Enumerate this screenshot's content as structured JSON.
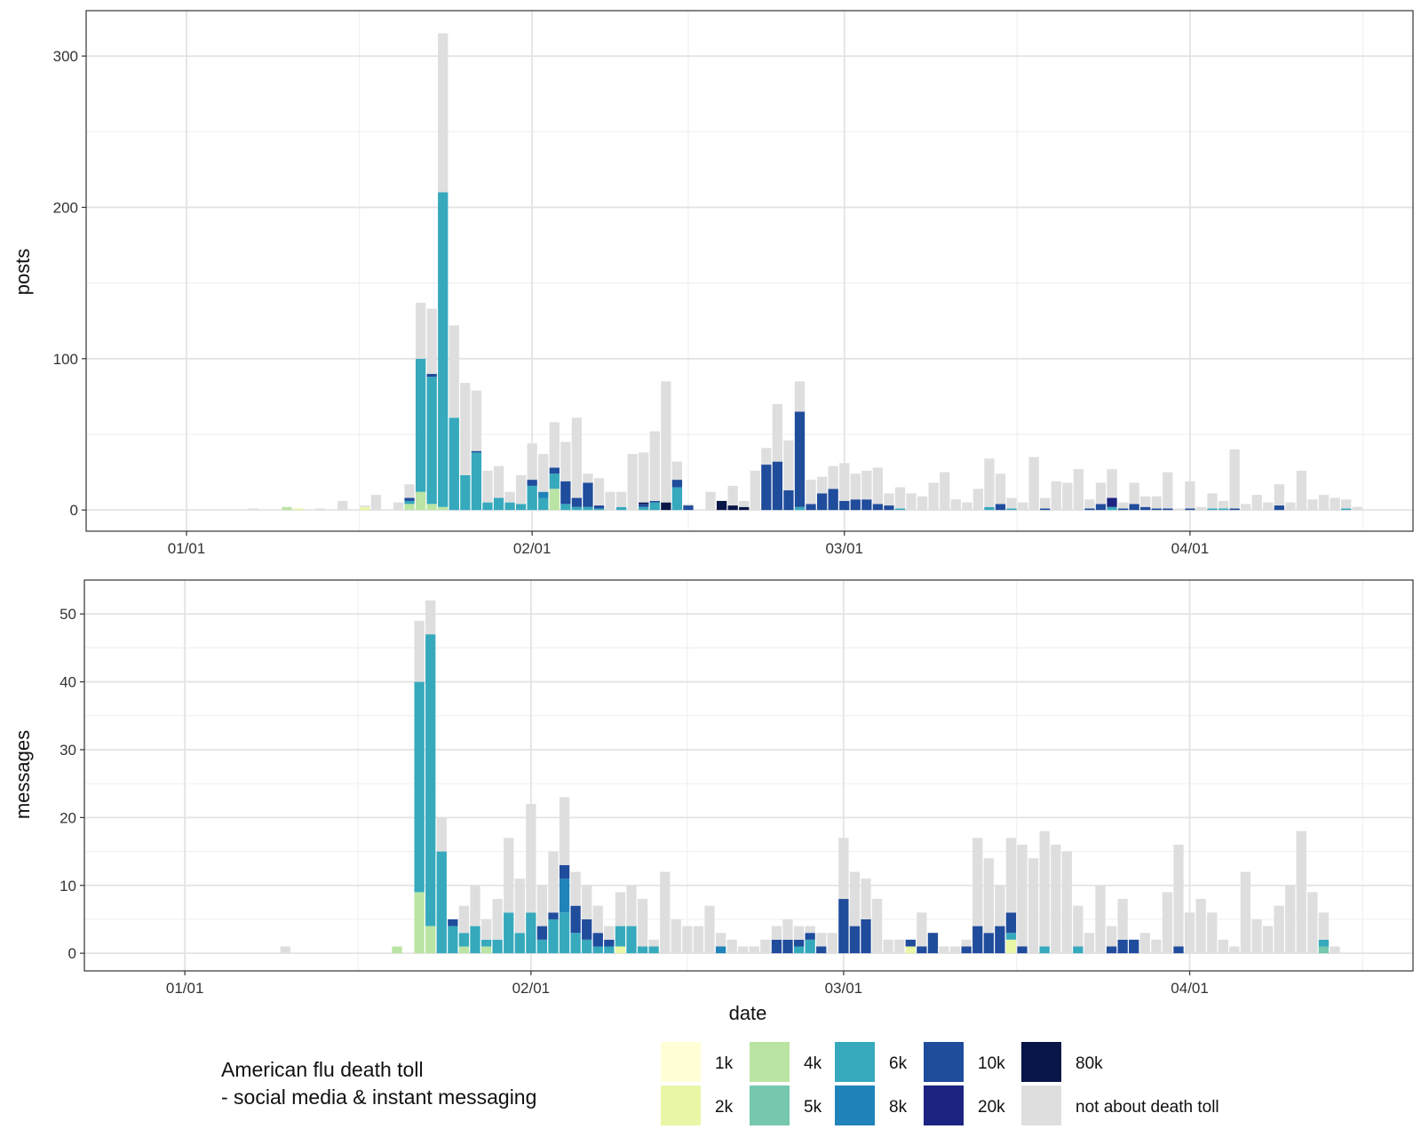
{
  "legend": {
    "title_line1": "American flu death toll",
    "title_line2": "- social media & instant messaging",
    "items": [
      {
        "key": "1k",
        "label": "1k",
        "color": "#fffed6"
      },
      {
        "key": "2k",
        "label": "2k",
        "color": "#e8f6a5"
      },
      {
        "key": "4k",
        "label": "4k",
        "color": "#bae4a3"
      },
      {
        "key": "5k",
        "label": "5k",
        "color": "#75c7ad"
      },
      {
        "key": "6k",
        "label": "6k",
        "color": "#36a9bd"
      },
      {
        "key": "8k",
        "label": "8k",
        "color": "#2083b9"
      },
      {
        "key": "10k",
        "label": "10k",
        "color": "#204c9c"
      },
      {
        "key": "20k",
        "label": "20k",
        "color": "#1c2380"
      },
      {
        "key": "80k",
        "label": "80k",
        "color": "#081647"
      },
      {
        "key": "none",
        "label": "not about death toll",
        "color": "#dedede"
      }
    ]
  },
  "chart_data": [
    {
      "type": "bar",
      "stacked": true,
      "ylabel": "posts",
      "xlabel": "",
      "ylim": [
        -14,
        330
      ],
      "yticks": [
        0,
        100,
        200,
        300
      ],
      "xticks": [
        "01/01",
        "02/01",
        "03/01",
        "04/01"
      ],
      "x_range_days": [
        -9,
        110
      ],
      "grid": true,
      "bars": [
        {
          "day": 6,
          "none": 1
        },
        {
          "day": 9,
          "4k": 2
        },
        {
          "day": 10,
          "2k": 1
        },
        {
          "day": 12,
          "none": 1
        },
        {
          "day": 14,
          "none": 6
        },
        {
          "day": 16,
          "2k": 2,
          "none": 1
        },
        {
          "day": 17,
          "none": 10
        },
        {
          "day": 19,
          "none": 5
        },
        {
          "day": 20,
          "4k": 4,
          "6k": 2,
          "10k": 2,
          "none": 9
        },
        {
          "day": 21,
          "4k": 12,
          "6k": 88,
          "none": 37
        },
        {
          "day": 22,
          "4k": 4,
          "6k": 84,
          "10k": 2,
          "none": 43
        },
        {
          "day": 23,
          "4k": 2,
          "6k": 208,
          "none": 105
        },
        {
          "day": 24,
          "6k": 61,
          "none": 61
        },
        {
          "day": 25,
          "6k": 23,
          "none": 61
        },
        {
          "day": 26,
          "6k": 38,
          "10k": 1,
          "none": 40
        },
        {
          "day": 27,
          "6k": 5,
          "none": 21
        },
        {
          "day": 28,
          "6k": 8,
          "none": 21
        },
        {
          "day": 29,
          "6k": 5,
          "none": 7
        },
        {
          "day": 30,
          "6k": 4,
          "none": 19
        },
        {
          "day": 31,
          "6k": 16,
          "10k": 4,
          "none": 24
        },
        {
          "day": 32,
          "6k": 8,
          "8k": 4,
          "none": 25
        },
        {
          "day": 33,
          "4k": 14,
          "6k": 10,
          "10k": 4,
          "none": 30
        },
        {
          "day": 34,
          "6k": 4,
          "10k": 15,
          "none": 26
        },
        {
          "day": 35,
          "6k": 2,
          "10k": 6,
          "none": 53
        },
        {
          "day": 36,
          "6k": 2,
          "10k": 16,
          "none": 6
        },
        {
          "day": 37,
          "6k": 1,
          "10k": 2,
          "none": 18
        },
        {
          "day": 38,
          "none": 12
        },
        {
          "day": 39,
          "6k": 2,
          "none": 10
        },
        {
          "day": 40,
          "none": 37
        },
        {
          "day": 41,
          "6k": 2,
          "10k": 2,
          "80k": 1,
          "none": 33
        },
        {
          "day": 42,
          "6k": 5,
          "10k": 1,
          "none": 46
        },
        {
          "day": 43,
          "80k": 5,
          "none": 80
        },
        {
          "day": 44,
          "6k": 15,
          "10k": 5,
          "none": 12
        },
        {
          "day": 45,
          "10k": 3,
          "none": 1
        },
        {
          "day": 47,
          "none": 12
        },
        {
          "day": 48,
          "80k": 6
        },
        {
          "day": 49,
          "80k": 3,
          "none": 13
        },
        {
          "day": 50,
          "80k": 2,
          "none": 4
        },
        {
          "day": 51,
          "none": 26
        },
        {
          "day": 52,
          "10k": 30,
          "none": 11
        },
        {
          "day": 53,
          "10k": 32,
          "none": 38
        },
        {
          "day": 54,
          "10k": 13,
          "none": 33
        },
        {
          "day": 55,
          "6k": 2,
          "10k": 63,
          "none": 20
        },
        {
          "day": 56,
          "10k": 4,
          "none": 16
        },
        {
          "day": 57,
          "10k": 11,
          "none": 11
        },
        {
          "day": 58,
          "10k": 14,
          "none": 15
        },
        {
          "day": 59,
          "10k": 6,
          "none": 25
        },
        {
          "day": 60,
          "10k": 7,
          "none": 17
        },
        {
          "day": 61,
          "10k": 7,
          "none": 19
        },
        {
          "day": 62,
          "10k": 4,
          "none": 24
        },
        {
          "day": 63,
          "10k": 3,
          "none": 8
        },
        {
          "day": 64,
          "6k": 1,
          "none": 14
        },
        {
          "day": 65,
          "none": 11
        },
        {
          "day": 66,
          "none": 9
        },
        {
          "day": 67,
          "none": 18
        },
        {
          "day": 68,
          "none": 25
        },
        {
          "day": 69,
          "none": 7
        },
        {
          "day": 70,
          "none": 5
        },
        {
          "day": 71,
          "none": 14
        },
        {
          "day": 72,
          "6k": 2,
          "none": 32
        },
        {
          "day": 73,
          "10k": 4,
          "none": 20
        },
        {
          "day": 74,
          "6k": 1,
          "none": 7
        },
        {
          "day": 75,
          "none": 5
        },
        {
          "day": 76,
          "none": 35
        },
        {
          "day": 77,
          "10k": 1,
          "none": 7
        },
        {
          "day": 78,
          "none": 19
        },
        {
          "day": 79,
          "none": 18
        },
        {
          "day": 80,
          "none": 27
        },
        {
          "day": 81,
          "10k": 1,
          "none": 6
        },
        {
          "day": 82,
          "10k": 4,
          "none": 14
        },
        {
          "day": 83,
          "6k": 2,
          "20k": 6,
          "none": 19
        },
        {
          "day": 84,
          "10k": 1,
          "none": 4
        },
        {
          "day": 85,
          "10k": 4,
          "none": 14
        },
        {
          "day": 86,
          "10k": 2,
          "none": 7
        },
        {
          "day": 87,
          "10k": 1,
          "none": 8
        },
        {
          "day": 88,
          "10k": 1,
          "none": 24
        },
        {
          "day": 89,
          "none": 1
        },
        {
          "day": 90,
          "10k": 1,
          "none": 18
        },
        {
          "day": 91,
          "none": 2
        },
        {
          "day": 92,
          "6k": 1,
          "none": 10
        },
        {
          "day": 93,
          "6k": 1,
          "none": 5
        },
        {
          "day": 94,
          "10k": 1,
          "none": 39
        },
        {
          "day": 95,
          "none": 4
        },
        {
          "day": 96,
          "none": 10
        },
        {
          "day": 97,
          "none": 5
        },
        {
          "day": 98,
          "10k": 3,
          "none": 14
        },
        {
          "day": 99,
          "none": 5
        },
        {
          "day": 100,
          "none": 26
        },
        {
          "day": 101,
          "none": 7
        },
        {
          "day": 102,
          "none": 10
        },
        {
          "day": 103,
          "none": 8
        },
        {
          "day": 104,
          "6k": 1,
          "none": 6
        },
        {
          "day": 105,
          "none": 2
        }
      ]
    },
    {
      "type": "bar",
      "stacked": true,
      "ylabel": "messages",
      "xlabel": "date",
      "ylim": [
        -2.6,
        55
      ],
      "yticks": [
        0,
        10,
        20,
        30,
        40,
        50
      ],
      "xticks": [
        "01/01",
        "02/01",
        "03/01",
        "04/01"
      ],
      "x_range_days": [
        -9,
        110
      ],
      "grid": true,
      "bars": [
        {
          "day": 9,
          "none": 1
        },
        {
          "day": 19,
          "4k": 1
        },
        {
          "day": 21,
          "4k": 9,
          "6k": 31,
          "none": 9
        },
        {
          "day": 22,
          "4k": 4,
          "6k": 43,
          "none": 5
        },
        {
          "day": 23,
          "6k": 15,
          "none": 5
        },
        {
          "day": 24,
          "6k": 4,
          "10k": 1
        },
        {
          "day": 25,
          "4k": 1,
          "6k": 2,
          "none": 4
        },
        {
          "day": 26,
          "6k": 4,
          "none": 6
        },
        {
          "day": 27,
          "4k": 1,
          "6k": 1,
          "none": 3
        },
        {
          "day": 28,
          "6k": 2,
          "none": 6
        },
        {
          "day": 29,
          "6k": 6,
          "none": 11
        },
        {
          "day": 30,
          "6k": 3,
          "none": 8
        },
        {
          "day": 31,
          "6k": 6,
          "none": 16
        },
        {
          "day": 32,
          "6k": 2,
          "10k": 2,
          "none": 6
        },
        {
          "day": 33,
          "6k": 5,
          "10k": 1,
          "none": 9
        },
        {
          "day": 34,
          "6k": 6,
          "8k": 5,
          "10k": 2,
          "none": 10
        },
        {
          "day": 35,
          "6k": 3,
          "10k": 4,
          "none": 5
        },
        {
          "day": 36,
          "6k": 2,
          "10k": 3,
          "none": 5
        },
        {
          "day": 37,
          "6k": 1,
          "10k": 2,
          "none": 4
        },
        {
          "day": 38,
          "6k": 1,
          "10k": 1,
          "none": 2
        },
        {
          "day": 39,
          "2k": 1,
          "6k": 3,
          "none": 5
        },
        {
          "day": 40,
          "6k": 4,
          "none": 6
        },
        {
          "day": 41,
          "6k": 1,
          "none": 7
        },
        {
          "day": 42,
          "6k": 1,
          "none": 1
        },
        {
          "day": 43,
          "none": 12
        },
        {
          "day": 44,
          "none": 5
        },
        {
          "day": 45,
          "none": 4
        },
        {
          "day": 46,
          "none": 4
        },
        {
          "day": 47,
          "none": 7
        },
        {
          "day": 48,
          "8k": 1,
          "none": 2
        },
        {
          "day": 49,
          "none": 2
        },
        {
          "day": 50,
          "none": 1
        },
        {
          "day": 51,
          "none": 1
        },
        {
          "day": 52,
          "none": 2
        },
        {
          "day": 53,
          "10k": 2,
          "none": 2
        },
        {
          "day": 54,
          "10k": 2,
          "none": 3
        },
        {
          "day": 55,
          "6k": 1,
          "10k": 1,
          "none": 2
        },
        {
          "day": 56,
          "6k": 2,
          "10k": 1,
          "none": 1
        },
        {
          "day": 57,
          "10k": 1,
          "none": 2
        },
        {
          "day": 58,
          "none": 3
        },
        {
          "day": 59,
          "10k": 8,
          "none": 9
        },
        {
          "day": 60,
          "10k": 4,
          "none": 8
        },
        {
          "day": 61,
          "10k": 5,
          "none": 6
        },
        {
          "day": 62,
          "none": 8
        },
        {
          "day": 63,
          "none": 2
        },
        {
          "day": 64,
          "none": 2
        },
        {
          "day": 65,
          "2k": 1,
          "10k": 1
        },
        {
          "day": 66,
          "10k": 1,
          "none": 5
        },
        {
          "day": 67,
          "10k": 3
        },
        {
          "day": 68,
          "none": 1
        },
        {
          "day": 69,
          "none": 1
        },
        {
          "day": 70,
          "10k": 1,
          "none": 1
        },
        {
          "day": 71,
          "10k": 4,
          "none": 13
        },
        {
          "day": 72,
          "10k": 3,
          "none": 11
        },
        {
          "day": 73,
          "10k": 4,
          "none": 6
        },
        {
          "day": 74,
          "2k": 2,
          "6k": 1,
          "10k": 3,
          "none": 11
        },
        {
          "day": 75,
          "10k": 1,
          "none": 15
        },
        {
          "day": 76,
          "none": 14
        },
        {
          "day": 77,
          "6k": 1,
          "none": 17
        },
        {
          "day": 78,
          "none": 16
        },
        {
          "day": 79,
          "none": 15
        },
        {
          "day": 80,
          "6k": 1,
          "none": 6
        },
        {
          "day": 81,
          "none": 3
        },
        {
          "day": 82,
          "none": 10
        },
        {
          "day": 83,
          "10k": 1,
          "none": 3
        },
        {
          "day": 84,
          "10k": 2,
          "none": 6
        },
        {
          "day": 85,
          "10k": 2
        },
        {
          "day": 86,
          "none": 3
        },
        {
          "day": 87,
          "none": 2
        },
        {
          "day": 88,
          "none": 9
        },
        {
          "day": 89,
          "10k": 1,
          "none": 15
        },
        {
          "day": 90,
          "none": 6
        },
        {
          "day": 91,
          "none": 8
        },
        {
          "day": 92,
          "none": 6
        },
        {
          "day": 93,
          "none": 2
        },
        {
          "day": 94,
          "none": 1
        },
        {
          "day": 95,
          "none": 12
        },
        {
          "day": 96,
          "none": 5
        },
        {
          "day": 97,
          "none": 4
        },
        {
          "day": 98,
          "none": 7
        },
        {
          "day": 99,
          "none": 10
        },
        {
          "day": 100,
          "none": 18
        },
        {
          "day": 101,
          "none": 9
        },
        {
          "day": 102,
          "5k": 1,
          "6k": 1,
          "none": 4
        },
        {
          "day": 103,
          "none": 1
        }
      ]
    }
  ]
}
